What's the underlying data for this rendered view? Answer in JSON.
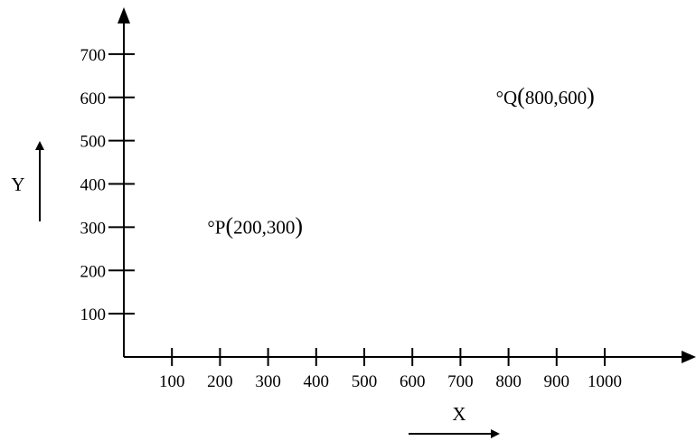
{
  "chart_data": {
    "type": "scatter",
    "xlabel": "X",
    "ylabel": "Y",
    "x_ticks": [
      100,
      200,
      300,
      400,
      500,
      600,
      700,
      800,
      900,
      1000
    ],
    "y_ticks": [
      100,
      200,
      300,
      400,
      500,
      600,
      700
    ],
    "points": [
      {
        "name": "P",
        "x": 200,
        "y": 300
      },
      {
        "name": "Q",
        "x": 800,
        "y": 600
      }
    ],
    "grid": false,
    "legend": "none"
  },
  "colors": {
    "ink": "#000000",
    "background": "#ffffff"
  }
}
